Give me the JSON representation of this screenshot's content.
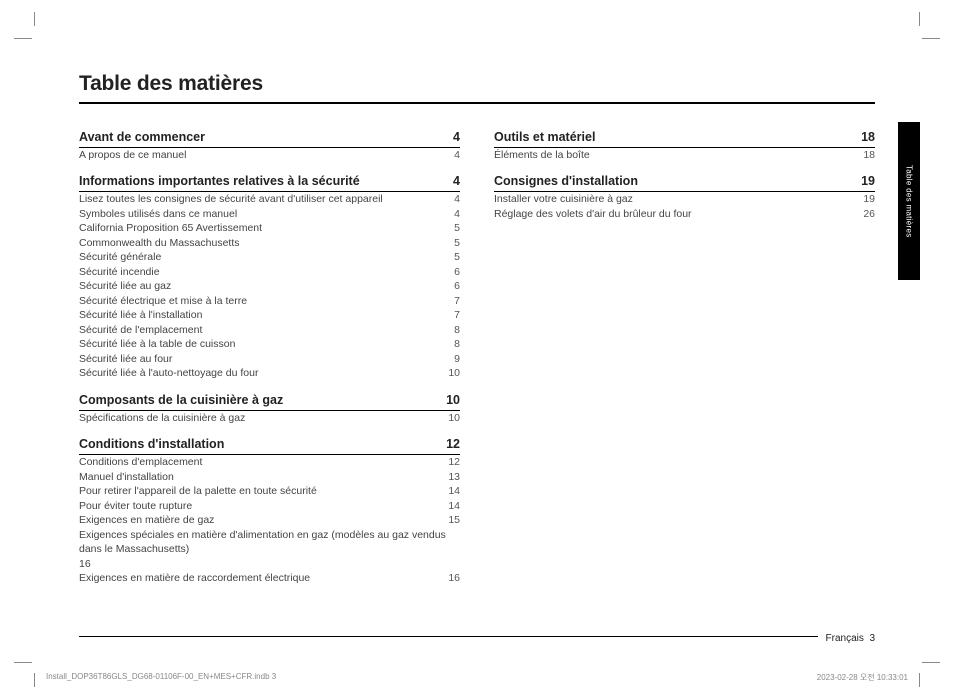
{
  "page_title": "Table des matières",
  "side_tab": "Table des matières",
  "footer": {
    "language": "Français",
    "page": "3"
  },
  "print": {
    "file": "Install_DOP36T86GLS_DG68-01106F-00_EN+MES+CFR.indb   3",
    "stamp": "2023-02-28   오전 10:33:01"
  },
  "left_sections": [
    {
      "title": "Avant de commencer",
      "page": "4",
      "entries": [
        {
          "label": "A propos de ce manuel",
          "page": "4"
        }
      ]
    },
    {
      "title": "Informations importantes relatives à la sécurité",
      "page": "4",
      "entries": [
        {
          "label": "Lisez toutes les consignes de sécurité avant d'utiliser cet appareil",
          "page": "4"
        },
        {
          "label": "Symboles utilisés dans ce manuel",
          "page": "4"
        },
        {
          "label": "California Proposition 65 Avertissement",
          "page": "5"
        },
        {
          "label": "Commonwealth du Massachusetts",
          "page": "5"
        },
        {
          "label": "Sécurité générale",
          "page": "5"
        },
        {
          "label": "Sécurité incendie",
          "page": "6"
        },
        {
          "label": "Sécurité liée au gaz",
          "page": "6"
        },
        {
          "label": "Sécurité électrique et mise à la terre",
          "page": "7"
        },
        {
          "label": "Sécurité liée à l'installation",
          "page": "7"
        },
        {
          "label": "Sécurité de l'emplacement",
          "page": "8"
        },
        {
          "label": "Sécurité liée à la table de cuisson",
          "page": "8"
        },
        {
          "label": "Sécurité liée au four",
          "page": "9"
        },
        {
          "label": "Sécurité liée à l'auto-nettoyage du four",
          "page": "10"
        }
      ]
    },
    {
      "title": "Composants de la cuisinière à gaz",
      "page": "10",
      "entries": [
        {
          "label": "Spécifications de la cuisinière à gaz",
          "page": "10"
        }
      ]
    },
    {
      "title": "Conditions d'installation",
      "page": "12",
      "entries": [
        {
          "label": "Conditions d'emplacement",
          "page": "12"
        },
        {
          "label": "Manuel d'installation",
          "page": "13"
        },
        {
          "label": "Pour retirer l'appareil de la palette en toute sécurité",
          "page": "14"
        },
        {
          "label": "Pour éviter toute rupture",
          "page": "14"
        },
        {
          "label": "Exigences en matière de gaz",
          "page": "15"
        },
        {
          "wrap": true,
          "label": "Exigences spéciales en matière d'alimentation en gaz (modèles au gaz vendus dans le Massachusetts)",
          "page_below": "16"
        },
        {
          "label": "Exigences en matière de raccordement électrique",
          "page": "16"
        }
      ]
    }
  ],
  "right_sections": [
    {
      "title": "Outils et matériel",
      "page": "18",
      "entries": [
        {
          "label": "Éléments de la boîte",
          "page": "18"
        }
      ]
    },
    {
      "title": "Consignes d'installation",
      "page": "19",
      "entries": [
        {
          "label": "Installer votre cuisinière à gaz",
          "page": "19"
        },
        {
          "label": "Réglage des volets d'air du brûleur du four",
          "page": "26"
        }
      ]
    }
  ]
}
